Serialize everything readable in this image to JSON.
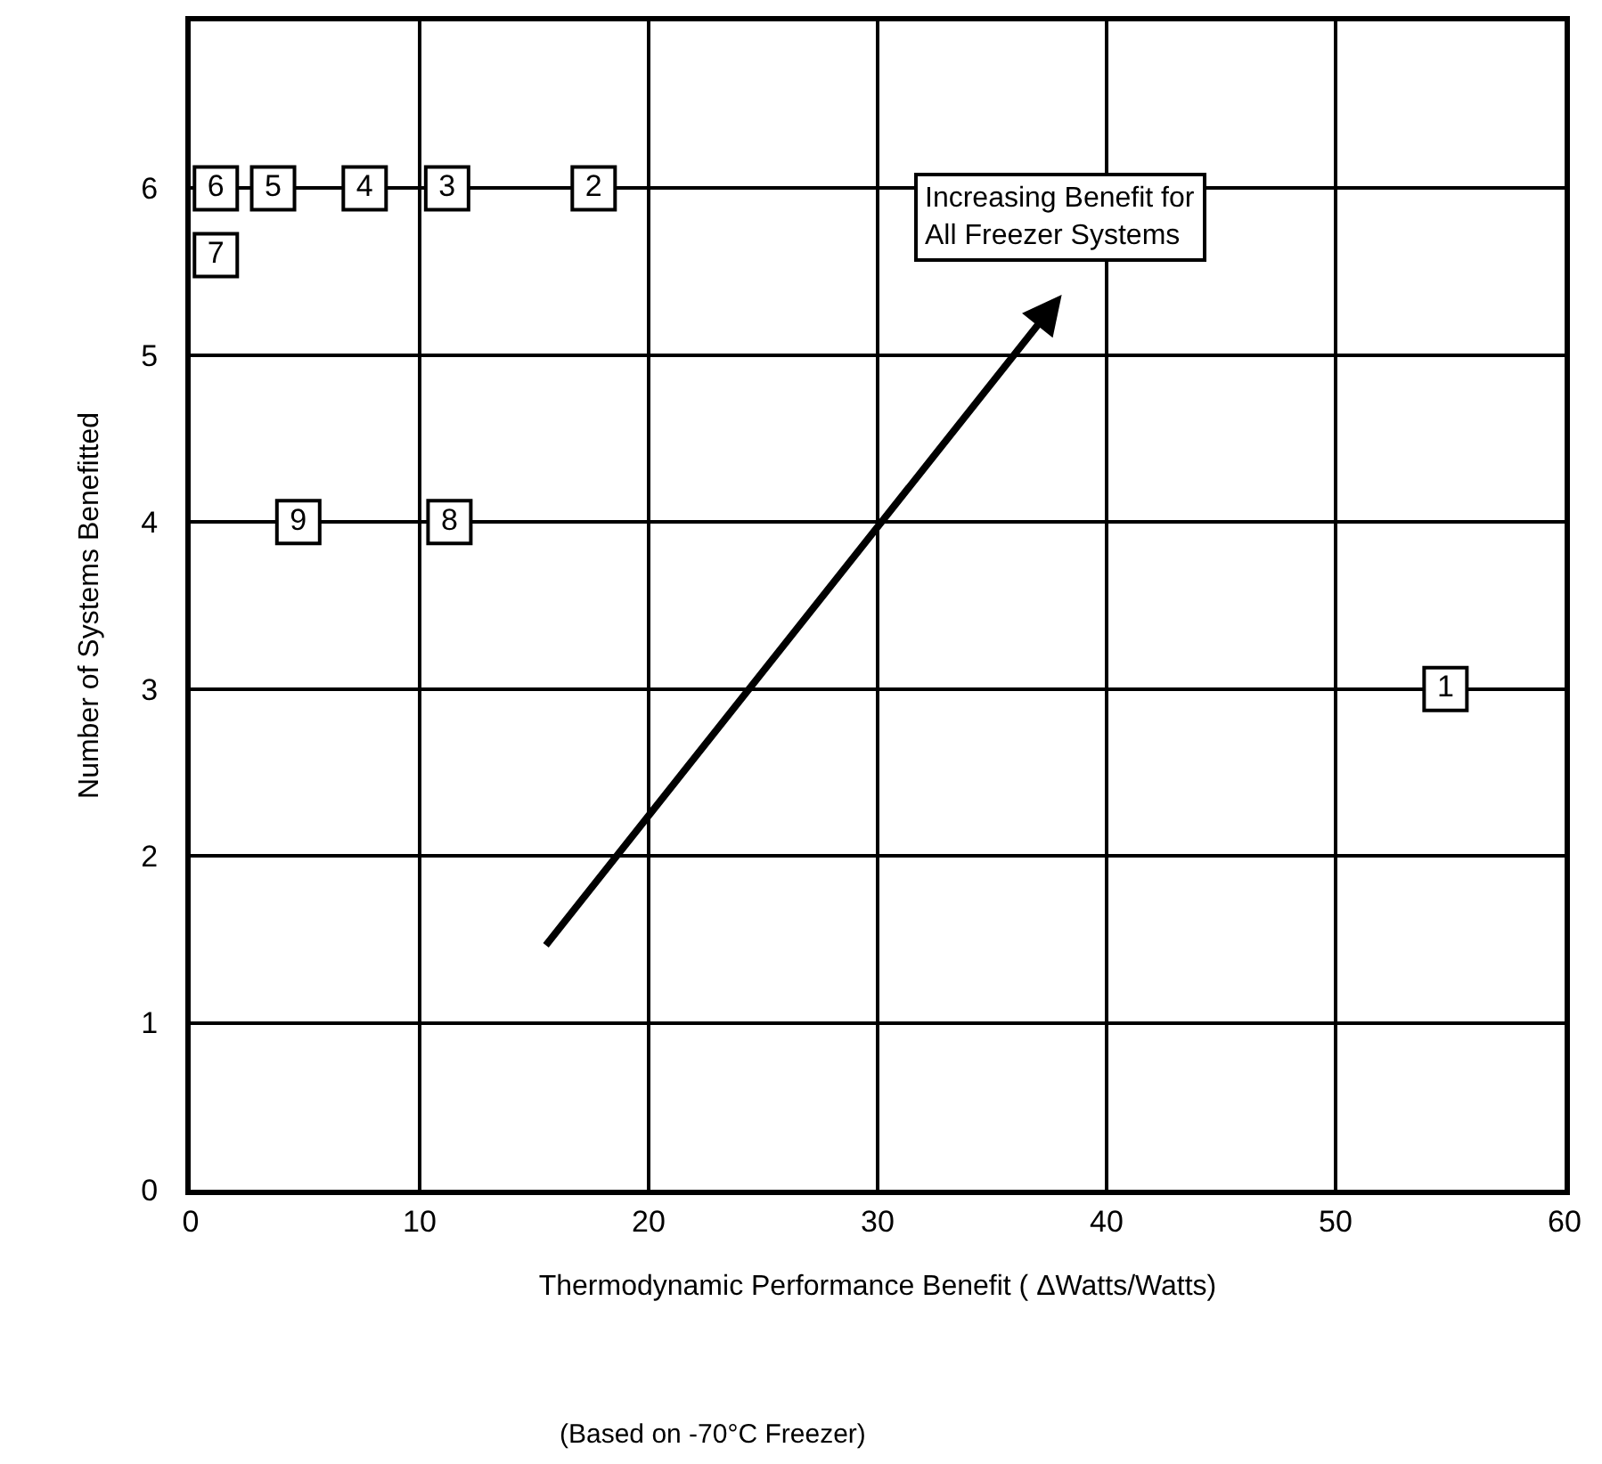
{
  "chart_data": {
    "type": "scatter",
    "xlabel": "Thermodynamic Performance Benefit ( ΔWatts/Watts)",
    "ylabel": "Number of Systems Benefitted",
    "annotations": [
      "Increasing Benefit for\nAll Freezer Systems",
      "(Based on -70°C Freezer)"
    ],
    "series": [
      {
        "name": "1",
        "x": [
          54.8
        ],
        "values": [
          3
        ]
      },
      {
        "name": "2",
        "x": [
          17.6
        ],
        "values": [
          6
        ]
      },
      {
        "name": "3",
        "x": [
          11.2
        ],
        "values": [
          6
        ]
      },
      {
        "name": "4",
        "x": [
          7.6
        ],
        "values": [
          6
        ]
      },
      {
        "name": "5",
        "x": [
          3.6
        ],
        "values": [
          6
        ]
      },
      {
        "name": "6",
        "x": [
          1.1
        ],
        "values": [
          6
        ]
      },
      {
        "name": "7",
        "x": [
          1.1
        ],
        "values": [
          5.6
        ]
      },
      {
        "name": "8",
        "x": [
          11.3
        ],
        "values": [
          4
        ]
      },
      {
        "name": "9",
        "x": [
          4.7
        ],
        "values": [
          4
        ]
      }
    ],
    "color": "#000000",
    "marker": "square",
    "xlim": [
      0,
      60
    ],
    "xticks": [
      0,
      10,
      20,
      30,
      40,
      50,
      60
    ],
    "ylim": [
      0,
      7
    ],
    "yticks": [
      0,
      1,
      2,
      3,
      4,
      5,
      6
    ],
    "grid": true,
    "legend": false
  }
}
